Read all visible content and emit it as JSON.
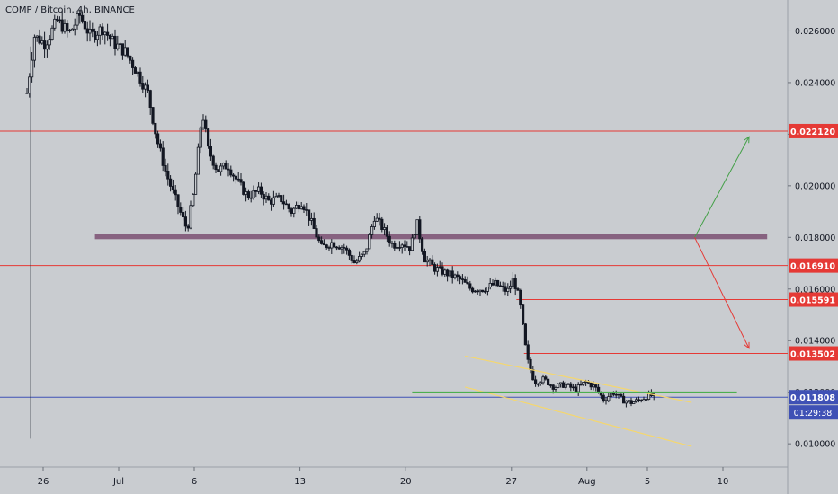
{
  "header": {
    "symbol_title": "COMP / Bitcoin, 4h, BINANCE"
  },
  "countdown": "01:29:38",
  "colors": {
    "background": "#c9ccd0",
    "candle": "#131722",
    "resistance_line": "#e53935",
    "current_price_line": "#3f51b5",
    "zone": "#7b4f72",
    "channel": "#f5d76e",
    "breakout_line": "#4caf50",
    "up_arrow": "#43a047",
    "down_arrow": "#e53935"
  },
  "chart_data": {
    "type": "candlestick",
    "title": "COMP / Bitcoin, 4h, BINANCE",
    "y_axis": {
      "ylim": [
        0.0091,
        0.0272
      ],
      "ticks": [
        0.026,
        0.024,
        0.022,
        0.02,
        0.018,
        0.016,
        0.014,
        0.012,
        0.01
      ],
      "tick_labels": [
        "0.026000",
        "0.024000",
        "0.022000",
        "0.020000",
        "0.018000",
        "0.016000",
        "0.014000",
        "0.012000",
        "0.010000"
      ]
    },
    "x_axis": {
      "range_days": [
        0,
        43
      ],
      "ticks": [
        {
          "day": 1.5,
          "label": "26"
        },
        {
          "day": 6.5,
          "label": "Jul"
        },
        {
          "day": 11.5,
          "label": "6"
        },
        {
          "day": 18.5,
          "label": "13"
        },
        {
          "day": 25.5,
          "label": "20"
        },
        {
          "day": 32.5,
          "label": "27"
        },
        {
          "day": 37.5,
          "label": "Aug"
        },
        {
          "day": 41.5,
          "label": "5"
        },
        {
          "day": 46.5,
          "label": "10"
        }
      ]
    },
    "price_levels": [
      {
        "value": 0.02212,
        "label": "0.022120",
        "style": "resistance"
      },
      {
        "value": 0.01691,
        "label": "0.016910",
        "style": "resistance"
      },
      {
        "value": 0.015591,
        "label": "0.015591",
        "style": "resistance"
      },
      {
        "value": 0.013502,
        "label": "0.013502",
        "style": "resistance"
      },
      {
        "value": 0.011808,
        "label": "0.011808",
        "style": "current"
      }
    ],
    "zone": {
      "from_day": 4.5,
      "to_day": 49,
      "y_low": 0.01793,
      "y_high": 0.01813
    },
    "channel": [
      {
        "x1": 29,
        "y1": 0.0134,
        "x2": 44,
        "y2": 0.0116
      },
      {
        "x1": 29,
        "y1": 0.0122,
        "x2": 44,
        "y2": 0.0099
      }
    ],
    "breakout_line": {
      "x1": 25.5,
      "x2": 47,
      "y": 0.012
    },
    "arrows": [
      {
        "direction": "up",
        "x1": 44.2,
        "y1": 0.018,
        "x2": 47.8,
        "y2": 0.0219
      },
      {
        "direction": "down",
        "x1": 44.2,
        "y1": 0.018,
        "x2": 47.8,
        "y2": 0.0137
      }
    ],
    "price_path": [
      [
        0,
        0.0236
      ],
      [
        0.5,
        0.0258
      ],
      [
        1.2,
        0.0255
      ],
      [
        2,
        0.0264
      ],
      [
        2.8,
        0.0259
      ],
      [
        3.5,
        0.0266
      ],
      [
        4.2,
        0.0258
      ],
      [
        5,
        0.0261
      ],
      [
        5.8,
        0.0255
      ],
      [
        6.5,
        0.0252
      ],
      [
        7.2,
        0.0245
      ],
      [
        8,
        0.0236
      ],
      [
        8.6,
        0.0218
      ],
      [
        9.2,
        0.0205
      ],
      [
        10,
        0.0192
      ],
      [
        10.6,
        0.0183
      ],
      [
        11,
        0.0196
      ],
      [
        11.3,
        0.0211
      ],
      [
        11.6,
        0.0229
      ],
      [
        12,
        0.0214
      ],
      [
        12.6,
        0.0206
      ],
      [
        13.3,
        0.0208
      ],
      [
        14,
        0.0201
      ],
      [
        14.6,
        0.0196
      ],
      [
        15.4,
        0.0198
      ],
      [
        16,
        0.0194
      ],
      [
        16.8,
        0.0195
      ],
      [
        17.5,
        0.019
      ],
      [
        18.2,
        0.0194
      ],
      [
        18.8,
        0.0186
      ],
      [
        19.5,
        0.0176
      ],
      [
        20.2,
        0.0178
      ],
      [
        21,
        0.0176
      ],
      [
        21.7,
        0.017
      ],
      [
        22.4,
        0.0174
      ],
      [
        23,
        0.0188
      ],
      [
        23.5,
        0.0184
      ],
      [
        24.2,
        0.0177
      ],
      [
        24.8,
        0.0178
      ],
      [
        25.4,
        0.0176
      ],
      [
        25.8,
        0.0186
      ],
      [
        26.3,
        0.0172
      ],
      [
        27,
        0.0168
      ],
      [
        27.8,
        0.0166
      ],
      [
        28.6,
        0.0164
      ],
      [
        29.4,
        0.016
      ],
      [
        30.2,
        0.016
      ],
      [
        31,
        0.0162
      ],
      [
        31.8,
        0.0159
      ],
      [
        32.2,
        0.0164
      ],
      [
        32.6,
        0.0156
      ],
      [
        33.1,
        0.0133
      ],
      [
        33.6,
        0.0124
      ],
      [
        34.2,
        0.0125
      ],
      [
        34.9,
        0.0122
      ],
      [
        35.6,
        0.0123
      ],
      [
        36.3,
        0.0121
      ],
      [
        37,
        0.0124
      ],
      [
        37.6,
        0.0122
      ],
      [
        38.2,
        0.0117
      ],
      [
        38.8,
        0.012
      ],
      [
        39.4,
        0.0117
      ],
      [
        40,
        0.0116
      ],
      [
        40.6,
        0.0117
      ],
      [
        41.2,
        0.0119
      ],
      [
        41.6,
        0.011808
      ]
    ]
  }
}
